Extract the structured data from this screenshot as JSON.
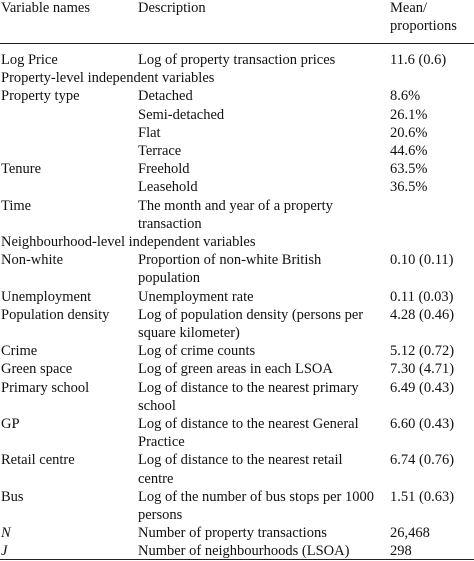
{
  "table": {
    "header": [
      "Variable names",
      "Description",
      [
        "Mean/",
        "proportions"
      ]
    ],
    "rows": [
      {
        "variable": "Log Price",
        "description": [
          "Log of property transaction prices"
        ],
        "value": "11.6 (0.6)"
      },
      {
        "section": "Property-level independent variables"
      },
      {
        "variable": "Property type",
        "description": [
          "Detached"
        ],
        "value": "8.6%"
      },
      {
        "description": [
          "Semi-detached"
        ],
        "value": "26.1%"
      },
      {
        "description": [
          "Flat"
        ],
        "value": "20.6%"
      },
      {
        "description": [
          "Terrace"
        ],
        "value": "44.6%"
      },
      {
        "variable": "Tenure",
        "description": [
          "Freehold"
        ],
        "value": "63.5%"
      },
      {
        "description": [
          "Leasehold"
        ],
        "value": "36.5%"
      },
      {
        "variable": "Time",
        "description": [
          "The month and year of a property",
          "transaction"
        ]
      },
      {
        "section": "Neighbourhood-level independent variables"
      },
      {
        "variable": "Non-white",
        "description": [
          "Proportion of non-white British",
          "population"
        ],
        "value": "0.10 (0.11)"
      },
      {
        "variable": "Unemployment",
        "description": [
          "Unemployment rate"
        ],
        "value": "0.11 (0.03)"
      },
      {
        "variable": "Population density",
        "description": [
          "Log of population density (persons per",
          "square kilometer)"
        ],
        "value": "4.28 (0.46)"
      },
      {
        "variable": "Crime",
        "description": [
          "Log of crime counts"
        ],
        "value": "5.12 (0.72)"
      },
      {
        "variable": "Green space",
        "description": [
          "Log of green areas in each LSOA"
        ],
        "value": "7.30 (4.71)"
      },
      {
        "variable": "Primary school",
        "description": [
          "Log of distance to the nearest primary",
          "school"
        ],
        "value": "6.49 (0.43)"
      },
      {
        "variable": "GP",
        "description": [
          "Log of distance to the nearest General",
          "Practice"
        ],
        "value": "6.60 (0.43)"
      },
      {
        "variable": "Retail centre",
        "description": [
          "Log of distance to the nearest retail",
          "centre"
        ],
        "value": "6.74 (0.76)"
      },
      {
        "variable": "Bus",
        "description": [
          "Log of the number of bus stops per 1000",
          "persons"
        ],
        "value": "1.51 (0.63)"
      },
      {
        "variable": "N",
        "italic": true,
        "description": [
          "Number of property transactions"
        ],
        "value": "26,468"
      },
      {
        "variable": "J",
        "italic": true,
        "description": [
          "Number of neighbourhoods (LSOA)"
        ],
        "value": "298"
      }
    ]
  }
}
